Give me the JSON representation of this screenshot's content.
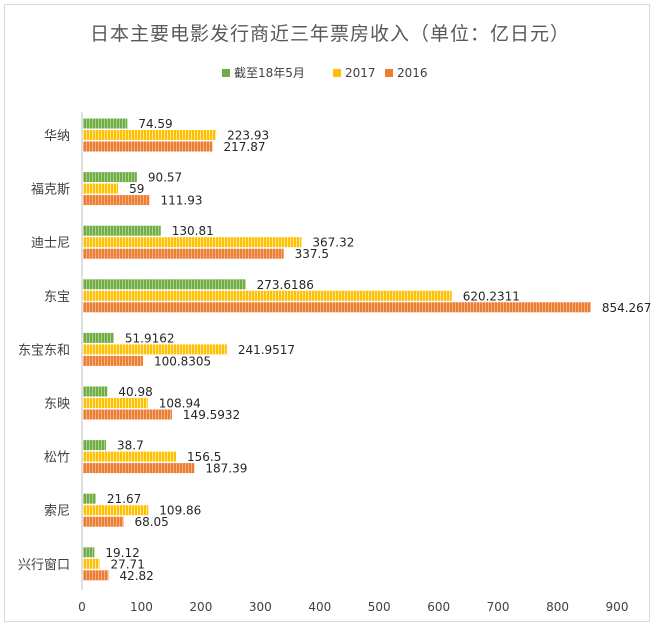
{
  "chart_data": {
    "type": "bar",
    "orientation": "horizontal",
    "title": "日本主要电影发行商近三年票房收入（单位：亿日元）",
    "categories": [
      "华纳",
      "福克斯",
      "迪士尼",
      "东宝",
      "东宝东和",
      "东映",
      "松竹",
      "索尼",
      "兴行窗口"
    ],
    "series": [
      {
        "name": "截至18年5月",
        "color": "#70ad47",
        "values": [
          74.59,
          90.57,
          130.81,
          273.6186,
          51.9162,
          40.98,
          38.7,
          21.67,
          19.12
        ],
        "labels": [
          "74.59",
          "90.57",
          "130.81",
          "273.6186",
          "51.9162",
          "40.98",
          "38.7",
          "21.67",
          "19.12"
        ]
      },
      {
        "name": "2017",
        "color": "#ffc000",
        "values": [
          223.93,
          59,
          367.32,
          620.2311,
          241.9517,
          108.94,
          156.5,
          109.86,
          27.71
        ],
        "labels": [
          "223.93",
          "59",
          "367.32",
          "620.2311",
          "241.9517",
          "108.94",
          "156.5",
          "109.86",
          "27.71"
        ]
      },
      {
        "name": "2016",
        "color": "#ed7d31",
        "values": [
          217.87,
          111.93,
          337.5,
          854.267,
          100.8305,
          149.5932,
          187.39,
          68.05,
          42.82
        ],
        "labels": [
          "217.87",
          "111.93",
          "337.5",
          "854.267",
          "100.8305",
          "149.5932",
          "187.39",
          "68.05",
          "42.82"
        ]
      }
    ],
    "x_ticks": [
      "0",
      "100",
      "200",
      "300",
      "400",
      "500",
      "600",
      "700",
      "800",
      "900"
    ],
    "xlim": [
      0,
      900
    ],
    "grid": false,
    "legend_position": "top"
  }
}
